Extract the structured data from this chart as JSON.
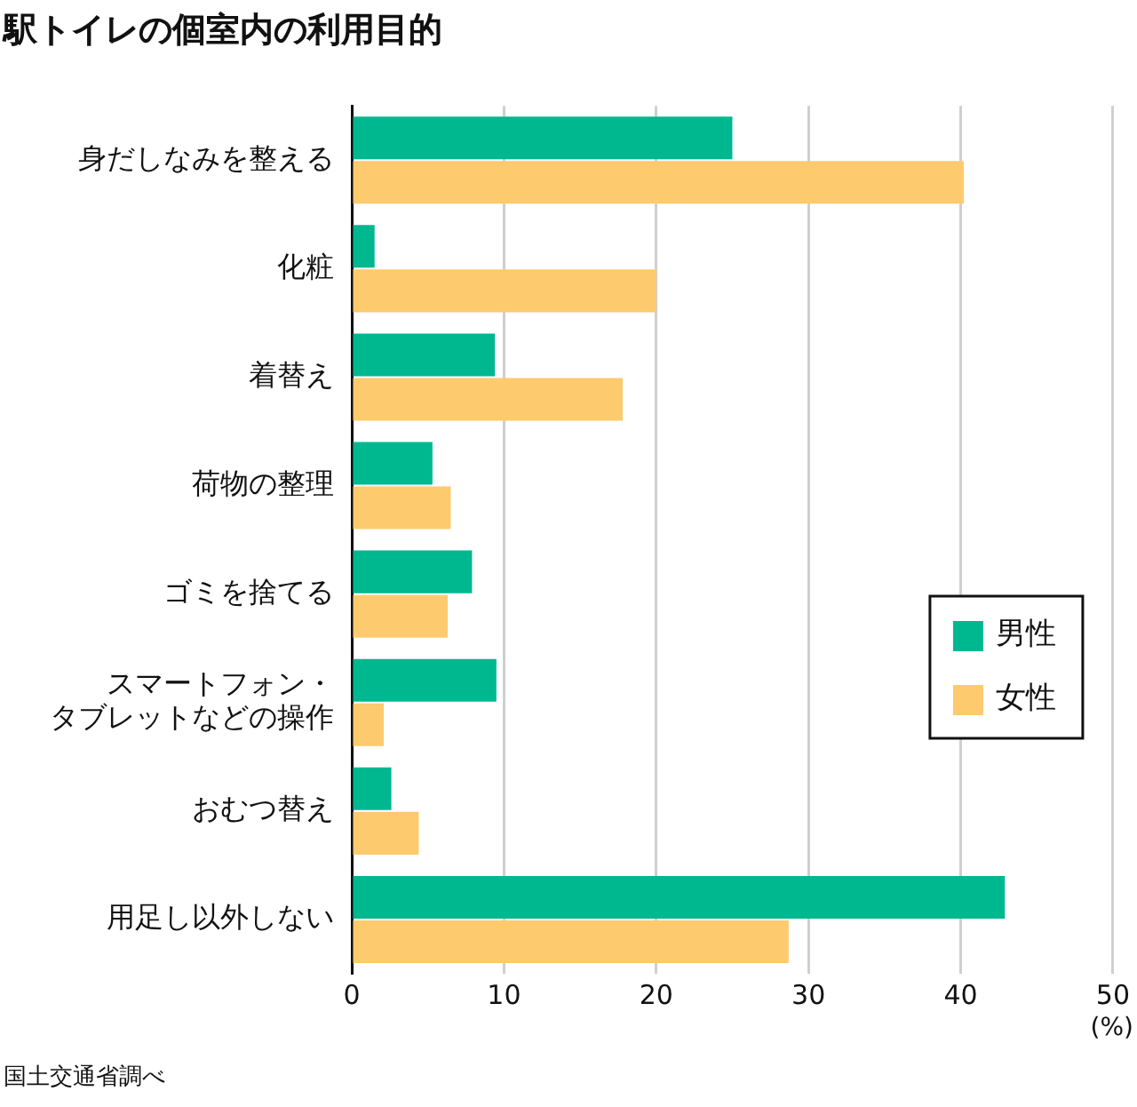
{
  "chart_data": {
    "type": "bar",
    "orientation": "horizontal",
    "title": "駅トイレの個室内の利用目的",
    "xlabel": "(%)",
    "categories": [
      "身だしなみを整える",
      "化粧",
      "着替え",
      "荷物の整理",
      "ゴミを捨てる",
      "スマートフォン・タブレットなどの操作",
      "おむつ替え",
      "用足し以外しない"
    ],
    "series": [
      {
        "name": "男性",
        "color": "#00b890",
        "values": [
          25.0,
          1.5,
          9.4,
          5.3,
          7.9,
          9.5,
          2.6,
          42.9
        ]
      },
      {
        "name": "女性",
        "color": "#fdca6e",
        "values": [
          40.2,
          20.0,
          17.8,
          6.5,
          6.3,
          2.1,
          4.4,
          28.7
        ]
      }
    ],
    "xlim": [
      0,
      50
    ],
    "xticks": [
      0,
      10,
      20,
      30,
      40,
      50
    ],
    "grid": "x",
    "legend": "right",
    "annotations": [
      "国土交通省調べ"
    ]
  }
}
